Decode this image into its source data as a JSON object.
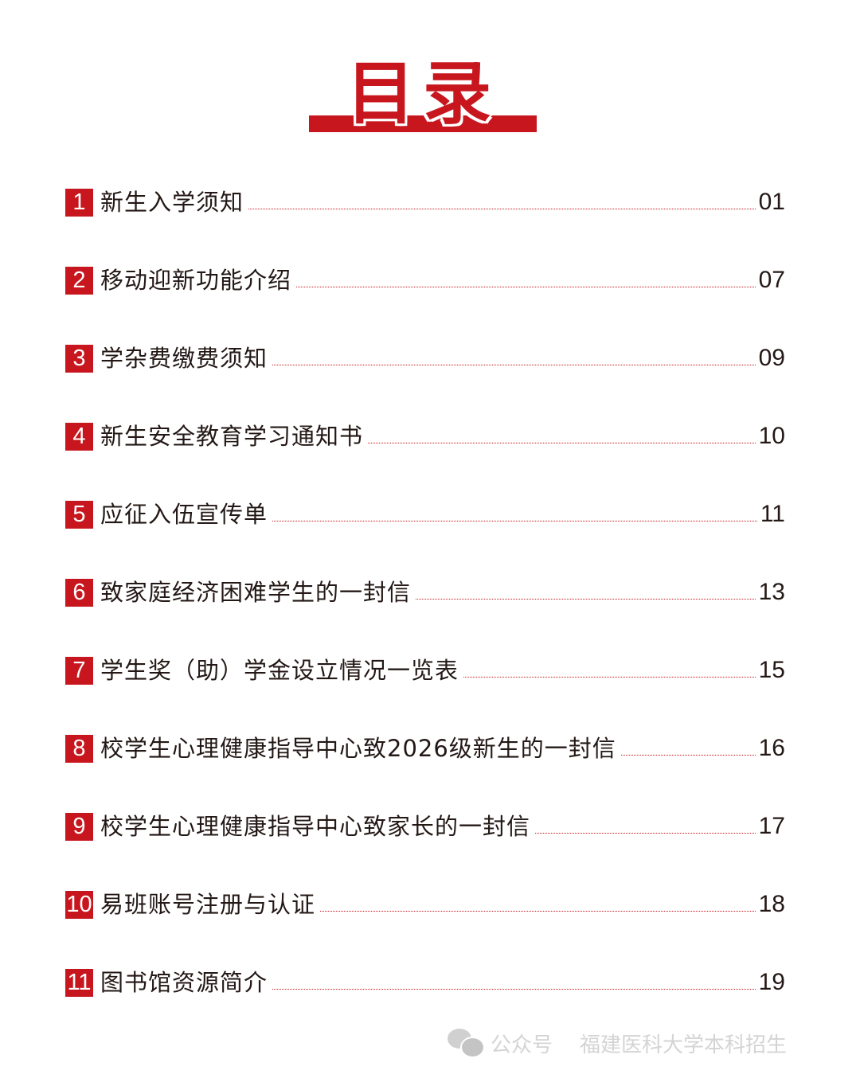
{
  "title": "目录",
  "toc": [
    {
      "num": "1",
      "title": "新生入学须知",
      "page": "01"
    },
    {
      "num": "2",
      "title": "移动迎新功能介绍",
      "page": "07"
    },
    {
      "num": "3",
      "title": "学杂费缴费须知",
      "page": "09"
    },
    {
      "num": "4",
      "title": "新生安全教育学习通知书",
      "page": "10"
    },
    {
      "num": "5",
      "title": "应征入伍宣传单",
      "page": "11"
    },
    {
      "num": "6",
      "title": "致家庭经济困难学生的一封信",
      "page": "13"
    },
    {
      "num": "7",
      "title": "学生奖（助）学金设立情况一览表",
      "page": "15"
    },
    {
      "num": "8",
      "title": "校学生心理健康指导中心致2026级新生的一封信",
      "page": "16"
    },
    {
      "num": "9",
      "title": "校学生心理健康指导中心致家长的一封信",
      "page": "17"
    },
    {
      "num": "10",
      "title": "易班账号注册与认证",
      "page": "18"
    },
    {
      "num": "11",
      "title": "图书馆资源简介",
      "page": "19"
    }
  ],
  "watermark": {
    "icon": "wechat-icon",
    "label": "公众号",
    "account": "福建医科大学本科招生"
  },
  "colors": {
    "accent": "#c8161e",
    "text": "#231815",
    "watermark": "#d4d4d4"
  }
}
